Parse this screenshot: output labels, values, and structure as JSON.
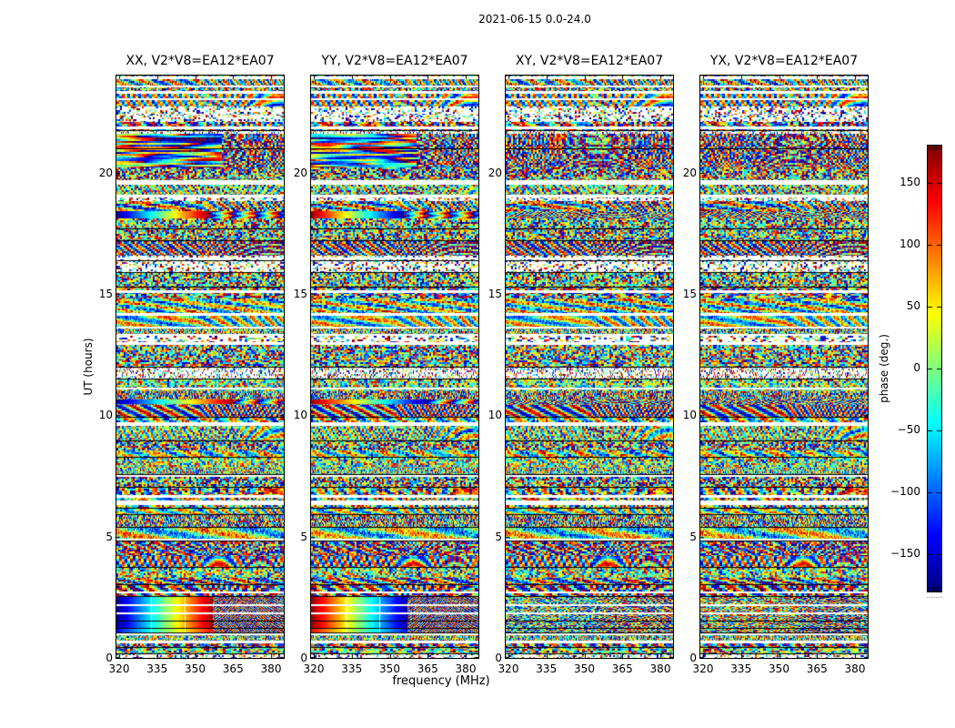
{
  "chart_data": {
    "type": "heatmap",
    "title": "2021-06-15 0.0-24.0",
    "xlabel": "frequency (MHz)",
    "ylabel": "UT (hours)",
    "x_tick_labels": [
      "320",
      "335",
      "350",
      "365",
      "380"
    ],
    "x_tick_values": [
      320,
      335,
      350,
      365,
      380
    ],
    "x_range_mhz": [
      318.9,
      385.0
    ],
    "y_tick_labels": [
      "0",
      "5",
      "10",
      "15",
      "20"
    ],
    "y_tick_values": [
      0,
      5,
      10,
      15,
      20
    ],
    "y_range_hours": [
      0,
      24
    ],
    "grid": false,
    "colormap": "jet",
    "legend_position": "none",
    "panels": [
      {
        "title": "XX, V2*V8=EA12*EA07",
        "pol": "XX",
        "phase_sign": 1,
        "noise_seed": 101
      },
      {
        "title": "YY, V2*V8=EA12*EA07",
        "pol": "YY",
        "phase_sign": -1,
        "noise_seed": 202
      },
      {
        "title": "XY, V2*V8=EA12*EA07",
        "pol": "XY",
        "phase_sign": 0,
        "noise_seed": 303
      },
      {
        "title": "YX, V2*V8=EA12*EA07",
        "pol": "YX",
        "phase_sign": 0,
        "noise_seed": 404
      }
    ],
    "colorbar": {
      "label": "phase (deg.)",
      "tick_labels": [
        "−150",
        "−100",
        "−50",
        "0",
        "50",
        "100",
        "150"
      ],
      "tick_values": [
        -150,
        -100,
        -50,
        0,
        50,
        100,
        150
      ],
      "range": [
        -180,
        180
      ],
      "position": "right"
    },
    "structure_seed": 20210615,
    "data_gaps_hours": [
      {
        "t": 2.72,
        "rows": 2
      },
      {
        "t": 4.9,
        "rows": 2
      },
      {
        "t": 6.5,
        "rows": 5
      },
      {
        "t": 7.55,
        "rows": 2
      },
      {
        "t": 9.7,
        "rows": 4
      },
      {
        "t": 11.15,
        "rows": 2
      },
      {
        "t": 13.35,
        "rows": 2
      },
      {
        "t": 15.15,
        "rows": 3
      },
      {
        "t": 16.5,
        "rows": 2
      },
      {
        "t": 19.7,
        "rows": 5
      },
      {
        "t": 21.9,
        "rows": 3
      },
      {
        "t": 23.05,
        "rows": 2
      }
    ],
    "features": [
      {
        "kind": "calibrator-scan",
        "t0": 0.95,
        "t1": 2.55
      },
      {
        "kind": "rainbow-row",
        "t0": 10.45,
        "t1": 10.65
      },
      {
        "kind": "phase-ramp-row",
        "t0": 18.1,
        "t1": 18.4
      },
      {
        "kind": "streaks",
        "t0": 20.2,
        "t1": 21.6
      }
    ]
  }
}
